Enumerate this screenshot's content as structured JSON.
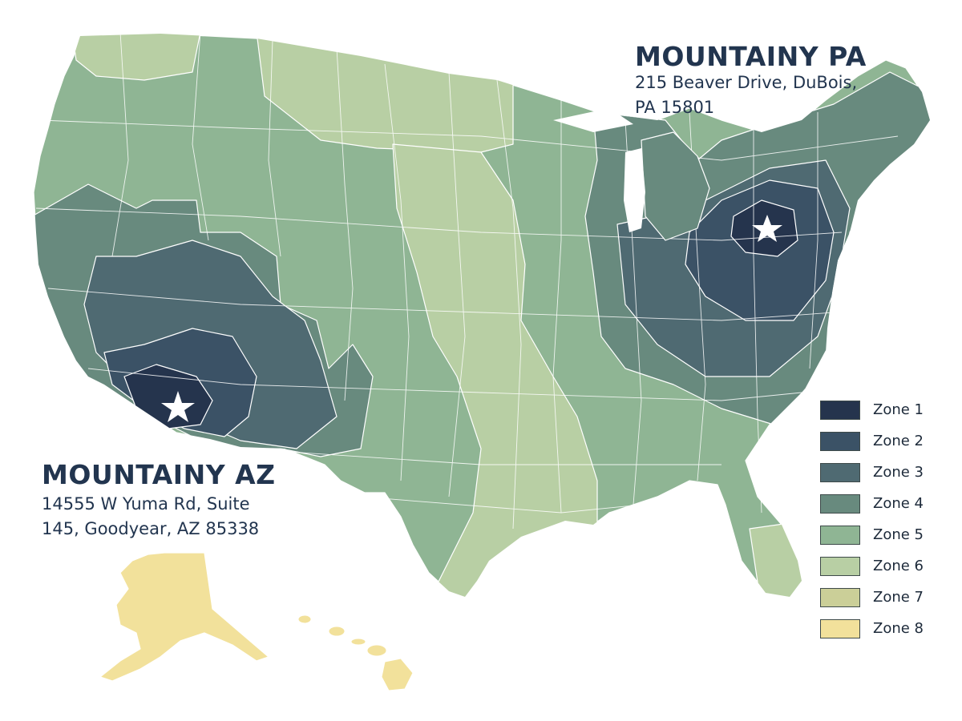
{
  "locations": {
    "pa": {
      "name": "MOUNTAINY PA",
      "address_line1": "215 Beaver Drive, DuBois,",
      "address_line2": "PA 15801"
    },
    "az": {
      "name": "MOUNTAINY AZ",
      "address_line1": "14555 W Yuma Rd, Suite",
      "address_line2": "145, Goodyear, AZ 85338"
    }
  },
  "legend": [
    {
      "label": "Zone 1",
      "color": "#25344d"
    },
    {
      "label": "Zone 2",
      "color": "#3b5266"
    },
    {
      "label": "Zone 3",
      "color": "#4f6a72"
    },
    {
      "label": "Zone 4",
      "color": "#688a7e"
    },
    {
      "label": "Zone 5",
      "color": "#8fb594"
    },
    {
      "label": "Zone 6",
      "color": "#b8cfa4"
    },
    {
      "label": "Zone 7",
      "color": "#cbcf98"
    },
    {
      "label": "Zone 8",
      "color": "#f2e19b"
    }
  ],
  "map": {
    "regions": [
      "contiguous-us",
      "alaska",
      "hawaii"
    ],
    "markers": [
      {
        "name": "mountainy-pa-star-marker",
        "icon": "star-icon",
        "zone": "Zone 1"
      },
      {
        "name": "mountainy-az-star-marker",
        "icon": "star-icon",
        "zone": "Zone 1"
      }
    ]
  }
}
